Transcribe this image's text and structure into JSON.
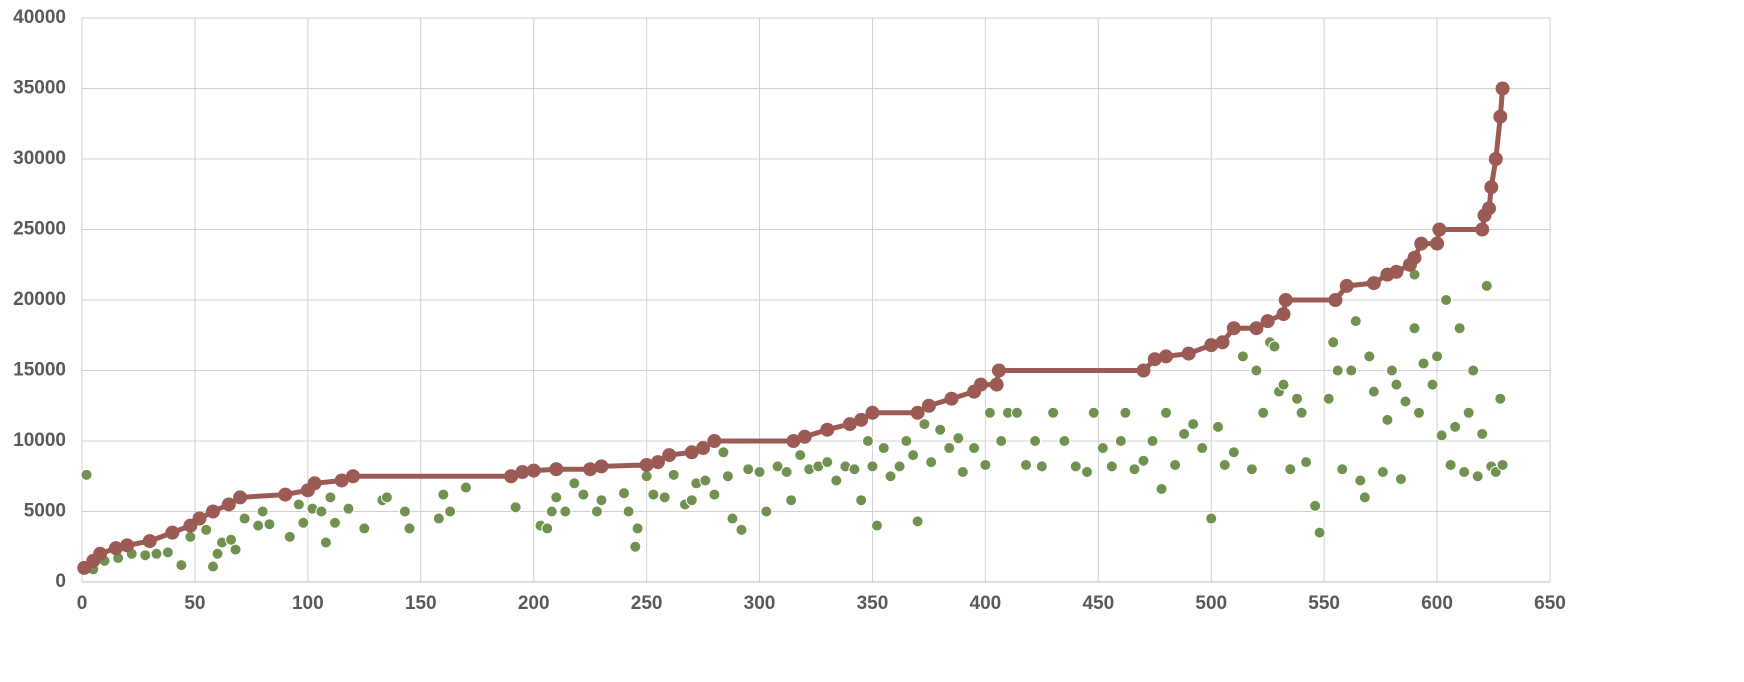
{
  "chart_data": {
    "type": "scatter",
    "xlim": [
      0,
      650
    ],
    "xticks": [
      0,
      50,
      100,
      150,
      200,
      250,
      300,
      350,
      400,
      450,
      500,
      550,
      600,
      650
    ],
    "ylim": [
      0,
      40000
    ],
    "yticks": [
      0,
      5000,
      10000,
      15000,
      20000,
      25000,
      30000,
      35000,
      40000
    ],
    "grid": true,
    "series": [
      {
        "type": "scatter",
        "color": "#70914f",
        "x": [
          2,
          5,
          10,
          16,
          22,
          28,
          33,
          38,
          44,
          48,
          55,
          58,
          60,
          62,
          66,
          68,
          72,
          78,
          80,
          83,
          92,
          96,
          98,
          102,
          106,
          108,
          110,
          112,
          118,
          125,
          133,
          135,
          143,
          145,
          158,
          160,
          163,
          170,
          192,
          203,
          206,
          208,
          210,
          214,
          218,
          222,
          228,
          230,
          240,
          242,
          245,
          246,
          250,
          253,
          258,
          262,
          267,
          270,
          272,
          276,
          280,
          284,
          286,
          288,
          292,
          295,
          300,
          303,
          308,
          312,
          314,
          318,
          322,
          326,
          330,
          334,
          338,
          342,
          345,
          348,
          350,
          352,
          355,
          358,
          362,
          365,
          368,
          370,
          373,
          376,
          380,
          384,
          388,
          390,
          395,
          400,
          402,
          407,
          410,
          414,
          418,
          422,
          425,
          430,
          435,
          440,
          445,
          448,
          452,
          456,
          460,
          462,
          466,
          470,
          474,
          478,
          480,
          484,
          488,
          492,
          496,
          500,
          503,
          506,
          510,
          514,
          518,
          520,
          523,
          526,
          528,
          530,
          532,
          535,
          538,
          540,
          542,
          546,
          548,
          552,
          554,
          556,
          558,
          562,
          564,
          566,
          568,
          570,
          572,
          576,
          578,
          580,
          582,
          584,
          586,
          590,
          590,
          592,
          594,
          598,
          600,
          602,
          604,
          606,
          608,
          610,
          612,
          614,
          616,
          618,
          620,
          622,
          624,
          626,
          628,
          629
        ],
        "values": [
          7600,
          900,
          1500,
          1700,
          2000,
          1900,
          2000,
          2100,
          1200,
          3200,
          3700,
          1100,
          2000,
          2800,
          3000,
          2300,
          4500,
          4000,
          5000,
          4100,
          3200,
          5500,
          4200,
          5200,
          5000,
          2800,
          6000,
          4200,
          5200,
          3800,
          5800,
          6000,
          5000,
          3800,
          4500,
          6200,
          5000,
          6700,
          5300,
          4000,
          3800,
          5000,
          6000,
          5000,
          7000,
          6200,
          5000,
          5800,
          6300,
          5000,
          2500,
          3800,
          7500,
          6200,
          6000,
          7600,
          5500,
          5800,
          7000,
          7200,
          6200,
          9200,
          7500,
          4500,
          3700,
          8000,
          7800,
          5000,
          8200,
          7800,
          5800,
          9000,
          8000,
          8200,
          8500,
          7200,
          8200,
          8000,
          5800,
          10000,
          8200,
          4000,
          9500,
          7500,
          8200,
          10000,
          9000,
          4300,
          11200,
          8500,
          10800,
          9500,
          10200,
          7800,
          9500,
          8300,
          12000,
          10000,
          12000,
          12000,
          8300,
          10000,
          8200,
          12000,
          10000,
          8200,
          7800,
          12000,
          9500,
          8200,
          10000,
          12000,
          8000,
          8600,
          10000,
          6600,
          12000,
          8300,
          10500,
          11200,
          9500,
          4500,
          11000,
          8300,
          9200,
          16000,
          8000,
          15000,
          12000,
          17000,
          16700,
          13500,
          14000,
          8000,
          13000,
          12000,
          8500,
          5400,
          3500,
          13000,
          17000,
          15000,
          8000,
          15000,
          18500,
          7200,
          6000,
          16000,
          13500,
          7800,
          11500,
          15000,
          14000,
          7300,
          12800,
          18000,
          21800,
          12000,
          15500,
          14000,
          16000,
          10400,
          20000,
          8300,
          11000,
          18000,
          7800,
          12000,
          15000,
          7500,
          10500,
          21000,
          8200,
          7800,
          13000,
          8300
        ]
      },
      {
        "type": "line",
        "color": "#9c5a55",
        "x": [
          1,
          5,
          8,
          15,
          20,
          30,
          40,
          48,
          52,
          58,
          65,
          70,
          90,
          100,
          103,
          115,
          120,
          190,
          195,
          200,
          210,
          225,
          230,
          250,
          255,
          260,
          270,
          275,
          280,
          315,
          320,
          330,
          340,
          345,
          350,
          370,
          375,
          385,
          395,
          398,
          405,
          406,
          470,
          475,
          480,
          490,
          500,
          505,
          510,
          520,
          525,
          532,
          533,
          555,
          560,
          572,
          578,
          582,
          588,
          590,
          593,
          600,
          601,
          620,
          621,
          623,
          624,
          626,
          628,
          629
        ],
        "values": [
          1000,
          1500,
          2000,
          2400,
          2600,
          2900,
          3500,
          4000,
          4500,
          5000,
          5500,
          6000,
          6200,
          6500,
          7000,
          7200,
          7500,
          7500,
          7800,
          7900,
          8000,
          8000,
          8200,
          8300,
          8500,
          9000,
          9200,
          9500,
          10000,
          10000,
          10300,
          10800,
          11200,
          11500,
          12000,
          12000,
          12500,
          13000,
          13500,
          14000,
          14000,
          15000,
          15000,
          15800,
          16000,
          16200,
          16800,
          17000,
          18000,
          18000,
          18500,
          19000,
          20000,
          20000,
          21000,
          21200,
          21800,
          22000,
          22500,
          23000,
          24000,
          24000,
          25000,
          25000,
          26000,
          26500,
          28000,
          30000,
          33000,
          35000
        ]
      }
    ]
  }
}
